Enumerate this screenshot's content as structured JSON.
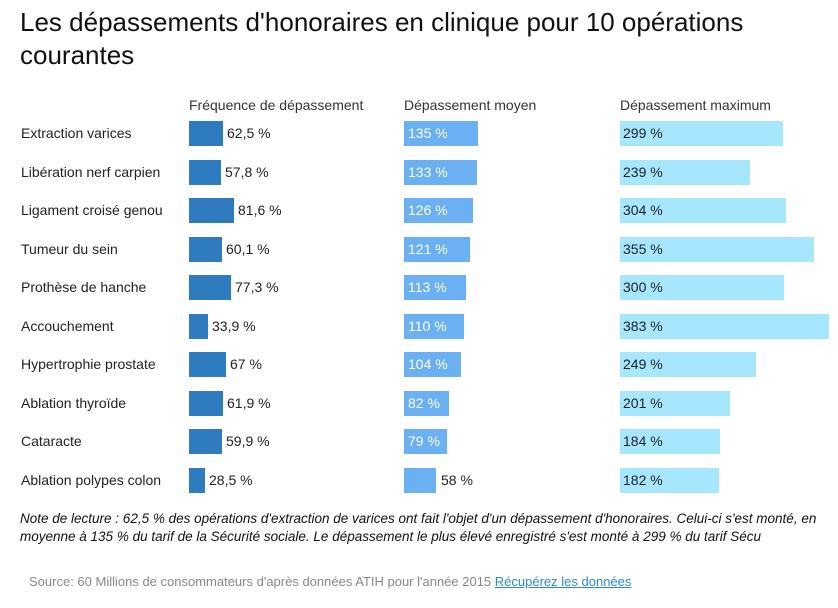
{
  "title": "Les dépassements d'honoraires en clinique pour 10 opérations courantes",
  "columns": {
    "freq": "Fréquence de dépassement",
    "avg": "Dépassement moyen",
    "max": "Dépassement maximum"
  },
  "colors": {
    "freq": "#2f7bbf",
    "avg": "#6ab0f3",
    "max": "#a6e7fd"
  },
  "chart_data": {
    "type": "table",
    "title": "Les dépassements d'honoraires en clinique pour 10 opérations courantes",
    "categories": [
      "Extraction varices",
      "Libération nerf carpien",
      "Ligament croisé genou",
      "Tumeur du sein",
      "Prothèse de hanche",
      "Accouchement",
      "Hypertrophie prostate",
      "Ablation thyroïde",
      "Cataracte",
      "Ablation polypes colon"
    ],
    "series": [
      {
        "name": "Fréquence de dépassement",
        "unit": "%",
        "values": [
          62.5,
          57.8,
          81.6,
          60.1,
          77.3,
          33.9,
          67,
          61.9,
          59.9,
          28.5
        ],
        "labels": [
          "62,5 %",
          "57,8 %",
          "81,6 %",
          "60,1 %",
          "77,3 %",
          "33,9 %",
          "67 %",
          "61,9 %",
          "59,9 %",
          "28,5 %"
        ]
      },
      {
        "name": "Dépassement moyen",
        "unit": "%",
        "values": [
          135,
          133,
          126,
          121,
          113,
          110,
          104,
          82,
          79,
          58
        ],
        "labels": [
          "135 %",
          "133 %",
          "126 %",
          "121 %",
          "113 %",
          "110 %",
          "104 %",
          "82 %",
          "79 %",
          "58 %"
        ]
      },
      {
        "name": "Dépassement maximum",
        "unit": "%",
        "values": [
          299,
          239,
          304,
          355,
          300,
          383,
          249,
          201,
          184,
          182
        ],
        "labels": [
          "299 %",
          "239 %",
          "304 %",
          "355 %",
          "300 %",
          "383 %",
          "249 %",
          "201 %",
          "184 %",
          "182 %"
        ]
      }
    ]
  },
  "note": "Note de lecture : 62,5 % des opérations d'extraction de varices ont fait l'objet d'un dépassement d'honoraires. Celui-ci s'est monté, en moyenne à 135 % du tarif de la Sécurité sociale. Le dépassement le plus élevé enregistré s'est monté à 299 % du tarif Sécu",
  "source": {
    "text": "Source: 60 Millions de consommateurs d'après données ATIH pour l'année 2015",
    "link_label": "Récupérez les données"
  }
}
